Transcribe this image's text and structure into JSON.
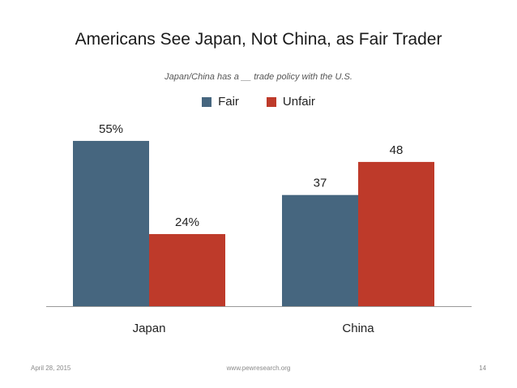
{
  "slide": {
    "title": "Americans See Japan, Not China, as Fair Trader",
    "subtitle": "Japan/China has a __ trade policy with the U.S.",
    "footer_date": "April 28, 2015",
    "footer_url": "www.pewresearch.org",
    "page_number": "14"
  },
  "colors": {
    "fair": "#46667f",
    "unfair": "#be3a2a",
    "axis": "#999999"
  },
  "chart_data": {
    "type": "bar",
    "categories": [
      "Japan",
      "China"
    ],
    "series": [
      {
        "name": "Fair",
        "values": [
          55,
          37
        ],
        "labels": [
          "55%",
          "37"
        ]
      },
      {
        "name": "Unfair",
        "values": [
          24,
          48
        ],
        "labels": [
          "24%",
          "48"
        ]
      }
    ],
    "title": "Americans See Japan, Not China, as Fair Trader",
    "subtitle": "Japan/China has a __ trade policy with the U.S.",
    "legend_position": "top",
    "grid": false,
    "ylim": [
      0,
      75
    ]
  }
}
